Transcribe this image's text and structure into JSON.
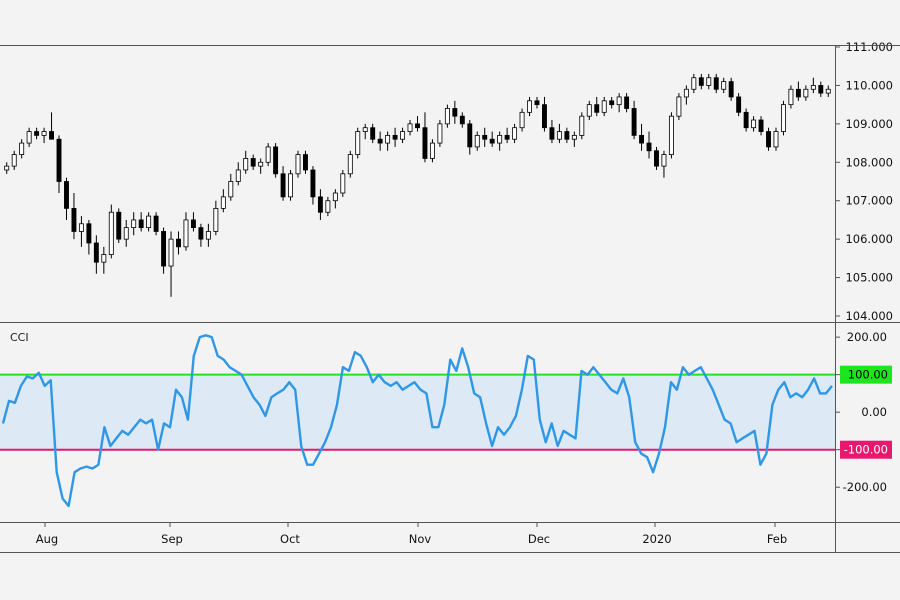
{
  "chart_data": [
    {
      "type": "candlestick",
      "title": "",
      "ylim": [
        104.0,
        111.0
      ],
      "y_ticks": [
        "111.000",
        "110.000",
        "109.000",
        "108.000",
        "107.000",
        "106.000",
        "105.000",
        "104.000"
      ],
      "grid": false,
      "colors": {
        "up": "#ffffff",
        "down": "#000000",
        "wick": "#000000"
      },
      "candles": [
        [
          107.8,
          108.0,
          107.7,
          107.9
        ],
        [
          107.9,
          108.3,
          107.8,
          108.2
        ],
        [
          108.2,
          108.6,
          108.1,
          108.5
        ],
        [
          108.5,
          108.9,
          108.4,
          108.8
        ],
        [
          108.8,
          108.9,
          108.6,
          108.7
        ],
        [
          108.7,
          108.9,
          108.5,
          108.8
        ],
        [
          108.8,
          109.3,
          108.6,
          108.6
        ],
        [
          108.6,
          108.7,
          107.2,
          107.5
        ],
        [
          107.5,
          107.6,
          106.5,
          106.8
        ],
        [
          106.8,
          107.2,
          106.0,
          106.2
        ],
        [
          106.2,
          106.6,
          105.8,
          106.4
        ],
        [
          106.4,
          106.5,
          105.6,
          105.9
        ],
        [
          105.9,
          106.1,
          105.1,
          105.4
        ],
        [
          105.4,
          105.8,
          105.1,
          105.6
        ],
        [
          105.6,
          106.9,
          105.5,
          106.7
        ],
        [
          106.7,
          106.8,
          105.9,
          106.0
        ],
        [
          106.0,
          106.5,
          105.8,
          106.3
        ],
        [
          106.3,
          106.7,
          106.1,
          106.5
        ],
        [
          106.5,
          106.7,
          106.2,
          106.3
        ],
        [
          106.3,
          106.7,
          106.2,
          106.6
        ],
        [
          106.6,
          106.7,
          106.1,
          106.2
        ],
        [
          106.2,
          106.3,
          105.1,
          105.3
        ],
        [
          105.3,
          106.2,
          104.5,
          106.0
        ],
        [
          106.0,
          106.2,
          105.6,
          105.8
        ],
        [
          105.8,
          106.7,
          105.7,
          106.5
        ],
        [
          106.5,
          106.7,
          106.2,
          106.3
        ],
        [
          106.3,
          106.4,
          105.8,
          106.0
        ],
        [
          106.0,
          106.4,
          105.8,
          106.2
        ],
        [
          106.2,
          107.0,
          106.1,
          106.8
        ],
        [
          106.8,
          107.3,
          106.7,
          107.1
        ],
        [
          107.1,
          107.7,
          107.0,
          107.5
        ],
        [
          107.5,
          108.0,
          107.4,
          107.8
        ],
        [
          107.8,
          108.3,
          107.7,
          108.1
        ],
        [
          108.1,
          108.2,
          107.8,
          107.9
        ],
        [
          107.9,
          108.1,
          107.7,
          108.0
        ],
        [
          108.0,
          108.5,
          107.9,
          108.4
        ],
        [
          108.4,
          108.5,
          107.6,
          107.7
        ],
        [
          107.7,
          107.9,
          107.0,
          107.1
        ],
        [
          107.1,
          107.8,
          107.0,
          107.7
        ],
        [
          107.7,
          108.3,
          107.6,
          108.2
        ],
        [
          108.2,
          108.3,
          107.7,
          107.8
        ],
        [
          107.8,
          107.9,
          106.9,
          107.1
        ],
        [
          107.1,
          107.3,
          106.5,
          106.7
        ],
        [
          106.7,
          107.1,
          106.6,
          107.0
        ],
        [
          107.0,
          107.3,
          106.8,
          107.2
        ],
        [
          107.2,
          107.8,
          107.1,
          107.7
        ],
        [
          107.7,
          108.3,
          107.6,
          108.2
        ],
        [
          108.2,
          108.9,
          108.1,
          108.8
        ],
        [
          108.8,
          109.0,
          108.6,
          108.9
        ],
        [
          108.9,
          109.0,
          108.5,
          108.6
        ],
        [
          108.6,
          108.8,
          108.3,
          108.5
        ],
        [
          108.5,
          108.8,
          108.3,
          108.7
        ],
        [
          108.7,
          108.9,
          108.4,
          108.6
        ],
        [
          108.6,
          108.9,
          108.5,
          108.8
        ],
        [
          108.8,
          109.1,
          108.7,
          109.0
        ],
        [
          109.0,
          109.2,
          108.8,
          108.9
        ],
        [
          108.9,
          109.3,
          108.0,
          108.1
        ],
        [
          108.1,
          108.6,
          108.0,
          108.5
        ],
        [
          108.5,
          109.1,
          108.4,
          109.0
        ],
        [
          109.0,
          109.5,
          108.9,
          109.4
        ],
        [
          109.4,
          109.6,
          109.0,
          109.2
        ],
        [
          109.2,
          109.3,
          108.9,
          109.0
        ],
        [
          109.0,
          109.1,
          108.2,
          108.4
        ],
        [
          108.4,
          108.8,
          108.3,
          108.7
        ],
        [
          108.7,
          108.9,
          108.4,
          108.6
        ],
        [
          108.6,
          108.8,
          108.4,
          108.5
        ],
        [
          108.5,
          108.8,
          108.3,
          108.7
        ],
        [
          108.7,
          108.9,
          108.5,
          108.6
        ],
        [
          108.6,
          109.0,
          108.5,
          108.9
        ],
        [
          108.9,
          109.4,
          108.8,
          109.3
        ],
        [
          109.3,
          109.7,
          109.2,
          109.6
        ],
        [
          109.6,
          109.7,
          109.4,
          109.5
        ],
        [
          109.5,
          109.7,
          108.8,
          108.9
        ],
        [
          108.9,
          109.1,
          108.5,
          108.6
        ],
        [
          108.6,
          109.0,
          108.5,
          108.8
        ],
        [
          108.8,
          108.9,
          108.5,
          108.6
        ],
        [
          108.6,
          108.8,
          108.4,
          108.7
        ],
        [
          108.7,
          109.3,
          108.6,
          109.2
        ],
        [
          109.2,
          109.6,
          109.1,
          109.5
        ],
        [
          109.5,
          109.7,
          109.2,
          109.3
        ],
        [
          109.3,
          109.7,
          109.2,
          109.6
        ],
        [
          109.6,
          109.7,
          109.4,
          109.5
        ],
        [
          109.5,
          109.8,
          109.3,
          109.7
        ],
        [
          109.7,
          109.8,
          109.3,
          109.4
        ],
        [
          109.4,
          109.6,
          108.6,
          108.7
        ],
        [
          108.7,
          109.0,
          108.3,
          108.5
        ],
        [
          108.5,
          108.8,
          108.1,
          108.3
        ],
        [
          108.3,
          108.4,
          107.8,
          107.9
        ],
        [
          107.9,
          108.3,
          107.6,
          108.2
        ],
        [
          108.2,
          109.3,
          108.1,
          109.2
        ],
        [
          109.2,
          109.8,
          109.1,
          109.7
        ],
        [
          109.7,
          110.0,
          109.5,
          109.9
        ],
        [
          109.9,
          110.3,
          109.8,
          110.2
        ],
        [
          110.2,
          110.3,
          109.9,
          110.0
        ],
        [
          110.0,
          110.3,
          109.9,
          110.2
        ],
        [
          110.2,
          110.3,
          109.8,
          109.9
        ],
        [
          109.9,
          110.2,
          109.8,
          110.1
        ],
        [
          110.1,
          110.2,
          109.6,
          109.7
        ],
        [
          109.7,
          109.8,
          109.2,
          109.3
        ],
        [
          109.3,
          109.4,
          108.8,
          108.9
        ],
        [
          108.9,
          109.2,
          108.8,
          109.1
        ],
        [
          109.1,
          109.2,
          108.7,
          108.8
        ],
        [
          108.8,
          108.9,
          108.3,
          108.4
        ],
        [
          108.4,
          108.9,
          108.3,
          108.8
        ],
        [
          108.8,
          109.6,
          108.7,
          109.5
        ],
        [
          109.5,
          110.0,
          109.4,
          109.9
        ],
        [
          109.9,
          110.1,
          109.6,
          109.7
        ],
        [
          109.7,
          110.0,
          109.6,
          109.9
        ],
        [
          109.9,
          110.2,
          109.8,
          110.0
        ],
        [
          110.0,
          110.1,
          109.7,
          109.8
        ],
        [
          109.8,
          110.0,
          109.7,
          109.9
        ]
      ]
    },
    {
      "type": "line",
      "title": "CCI",
      "ylim": [
        -290,
        235
      ],
      "y_ticks": [
        "200.00",
        "100.00",
        "0.00",
        "-100.00",
        "-200.00"
      ],
      "x_ticks": [
        "Aug",
        "Sep",
        "Oct",
        "Nov",
        "Dec",
        "2020",
        "Feb"
      ],
      "reference_lines": [
        {
          "label": "100.00",
          "value": 100,
          "color": "#1ee61e"
        },
        {
          "label": "-100.00",
          "value": -100,
          "color": "#e6196e"
        }
      ],
      "band_fill": "#dde9f5",
      "line_color": "#2e97e6",
      "series": [
        {
          "values": [
            -30,
            30,
            25,
            70,
            95,
            90,
            105,
            70,
            85,
            -160,
            -230,
            -250,
            -160,
            -150,
            -145,
            -150,
            -140,
            -40,
            -90,
            -70,
            -50,
            -60,
            -40,
            -20,
            -30,
            -20,
            -100,
            -30,
            -40,
            60,
            40,
            -20,
            150,
            200,
            205,
            200,
            150,
            140,
            120,
            110,
            100,
            70,
            40,
            20,
            -10,
            40,
            50,
            60,
            80,
            60,
            -90,
            -140,
            -140,
            -110,
            -80,
            -40,
            20,
            120,
            110,
            160,
            150,
            120,
            80,
            100,
            80,
            70,
            80,
            60,
            70,
            80,
            60,
            50,
            -40,
            -40,
            20,
            140,
            110,
            170,
            120,
            50,
            40,
            -30,
            -90,
            -40,
            -60,
            -40,
            -10,
            60,
            150,
            140,
            -20,
            -80,
            -30,
            -90,
            -50,
            -60,
            -70,
            110,
            100,
            120,
            100,
            80,
            60,
            50,
            90,
            40,
            -80,
            -110,
            -120,
            -160,
            -110,
            -40,
            80,
            60,
            120,
            100,
            110,
            120,
            90,
            60,
            20,
            -20,
            -30,
            -80,
            -70,
            -60,
            -50,
            -140,
            -110,
            20,
            60,
            80,
            40,
            50,
            40,
            60,
            90,
            50,
            50,
            70
          ]
        }
      ]
    }
  ]
}
